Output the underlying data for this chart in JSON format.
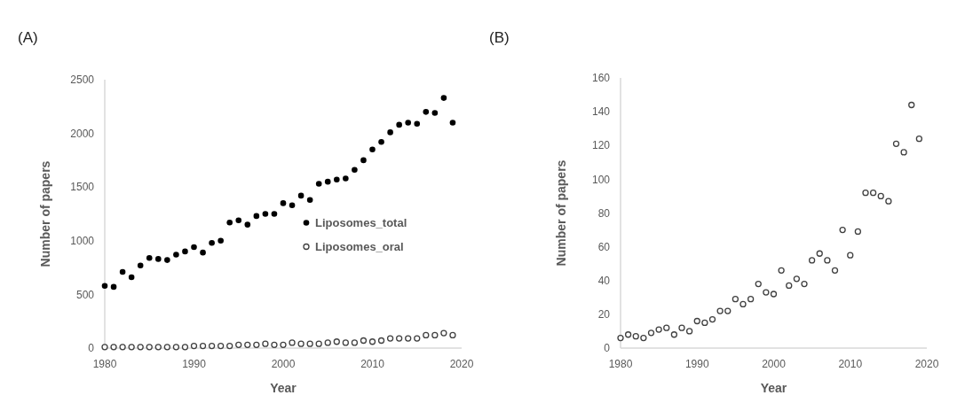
{
  "chart_data": [
    {
      "type": "scatter",
      "title": "(A)",
      "xlabel": "Year",
      "ylabel": "Number of papers",
      "xlim": [
        1980,
        2020
      ],
      "xticks": [
        1980,
        1990,
        2000,
        2010,
        2020
      ],
      "ylim": [
        0,
        2500
      ],
      "yticks": [
        0,
        500,
        1000,
        1500,
        2000,
        2500
      ],
      "grid": false,
      "legend": "right",
      "series": [
        {
          "name": "Liposomes_total",
          "color": "#000000",
          "marker": "circle",
          "x": [
            1980,
            1981,
            1982,
            1983,
            1984,
            1985,
            1986,
            1987,
            1988,
            1989,
            1990,
            1991,
            1992,
            1993,
            1994,
            1995,
            1996,
            1997,
            1998,
            1999,
            2000,
            2001,
            2002,
            2003,
            2004,
            2005,
            2006,
            2007,
            2008,
            2009,
            2010,
            2011,
            2012,
            2013,
            2014,
            2015,
            2016,
            2017,
            2018,
            2019
          ],
          "values": [
            580,
            570,
            710,
            660,
            770,
            840,
            830,
            820,
            870,
            900,
            940,
            890,
            980,
            1000,
            1170,
            1190,
            1150,
            1230,
            1250,
            1250,
            1350,
            1330,
            1420,
            1380,
            1530,
            1550,
            1570,
            1580,
            1660,
            1750,
            1850,
            1920,
            2010,
            2080,
            2100,
            2090,
            2200,
            2190,
            2330,
            2100
          ]
        },
        {
          "name": "Liposomes_oral",
          "color": "#404040",
          "marker": "circle-open",
          "x": [
            1980,
            1981,
            1982,
            1983,
            1984,
            1985,
            1986,
            1987,
            1988,
            1989,
            1990,
            1991,
            1992,
            1993,
            1994,
            1995,
            1996,
            1997,
            1998,
            1999,
            2000,
            2001,
            2002,
            2003,
            2004,
            2005,
            2006,
            2007,
            2008,
            2009,
            2010,
            2011,
            2012,
            2013,
            2014,
            2015,
            2016,
            2017,
            2018,
            2019
          ],
          "values": [
            10,
            10,
            10,
            10,
            10,
            10,
            10,
            10,
            10,
            10,
            20,
            20,
            20,
            20,
            20,
            30,
            30,
            30,
            40,
            30,
            30,
            50,
            40,
            40,
            40,
            50,
            60,
            50,
            50,
            70,
            60,
            70,
            90,
            90,
            90,
            90,
            120,
            120,
            140,
            120
          ]
        }
      ]
    },
    {
      "type": "scatter",
      "title": "(B)",
      "xlabel": "Year",
      "ylabel": "Number of papers",
      "xlim": [
        1980,
        2020
      ],
      "xticks": [
        1980,
        1990,
        2000,
        2010,
        2020
      ],
      "ylim": [
        0,
        160
      ],
      "yticks": [
        0,
        20,
        40,
        60,
        80,
        100,
        120,
        140,
        160
      ],
      "grid": false,
      "legend": false,
      "series": [
        {
          "color": "#404040",
          "marker": "circle-open",
          "x": [
            1980,
            1981,
            1982,
            1983,
            1984,
            1985,
            1986,
            1987,
            1988,
            1989,
            1990,
            1991,
            1992,
            1993,
            1994,
            1995,
            1996,
            1997,
            1998,
            1999,
            2000,
            2001,
            2002,
            2003,
            2004,
            2005,
            2006,
            2007,
            2008,
            2009,
            2010,
            2011,
            2012,
            2013,
            2014,
            2015,
            2016,
            2017,
            2018,
            2019
          ],
          "values": [
            6,
            8,
            7,
            6,
            9,
            11,
            12,
            8,
            12,
            10,
            16,
            15,
            17,
            22,
            22,
            29,
            26,
            29,
            38,
            33,
            32,
            46,
            37,
            41,
            38,
            52,
            56,
            52,
            46,
            70,
            55,
            69,
            92,
            92,
            90,
            87,
            121,
            116,
            144,
            124
          ]
        }
      ]
    }
  ]
}
